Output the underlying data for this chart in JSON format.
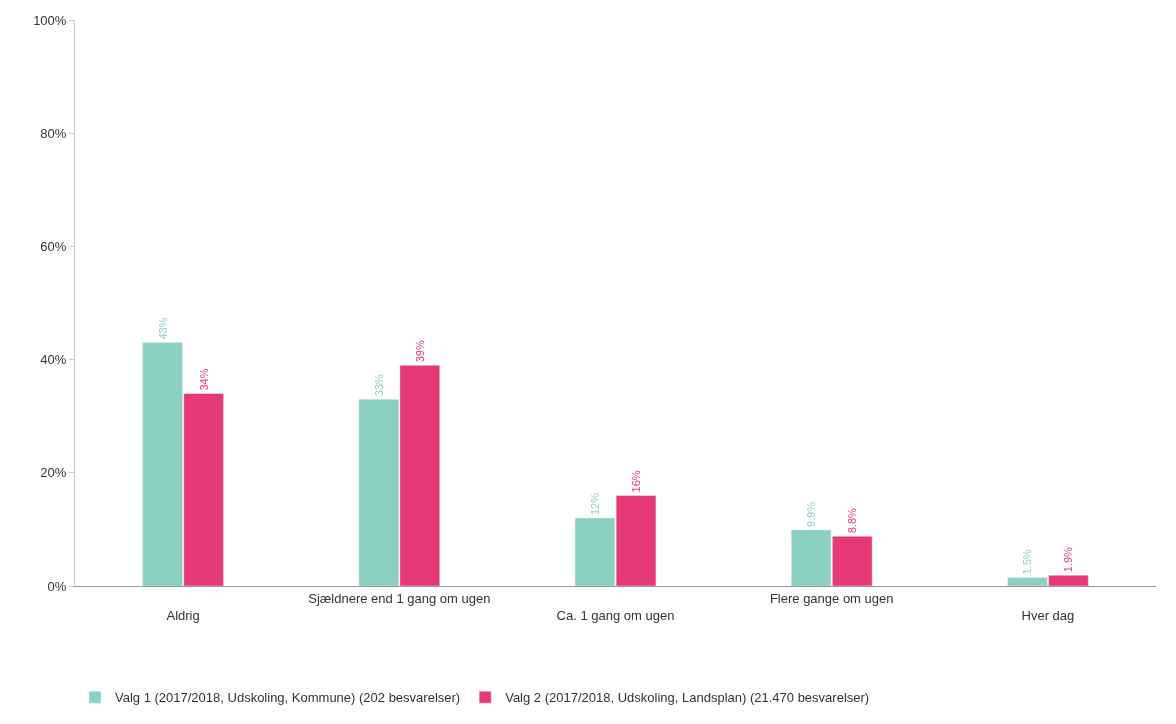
{
  "chart_data": {
    "type": "bar",
    "categories": [
      "Aldrig",
      "Sjældnere end 1 gang om ugen",
      "Ca. 1 gang om ugen",
      "Flere gange om ugen",
      "Hver dag"
    ],
    "series": [
      {
        "name": "Valg 1 (2017/2018, Udskoling, Kommune) (202 besvarelser)",
        "color": "#8ccfc3",
        "values": [
          43,
          33,
          12,
          9.9,
          1.5
        ],
        "value_labels": [
          "43%",
          "33%",
          "12%",
          "9.9%",
          "1.5%"
        ]
      },
      {
        "name": "Valg 2 (2017/2018, Udskoling, Landsplan) (21.470 besvarelser)",
        "color": "#e63a78",
        "values": [
          34,
          39,
          16,
          8.8,
          1.9
        ],
        "value_labels": [
          "34%",
          "39%",
          "16%",
          "8.8%",
          "1.9%"
        ]
      }
    ],
    "ylim": [
      0,
      100
    ],
    "yticks": [
      {
        "value": 0,
        "label": "0%"
      },
      {
        "value": 20,
        "label": "20%"
      },
      {
        "value": 40,
        "label": "40%"
      },
      {
        "value": 60,
        "label": "60%"
      },
      {
        "value": 80,
        "label": "80%"
      },
      {
        "value": 100,
        "label": "100%"
      }
    ],
    "legend": "bottom"
  }
}
